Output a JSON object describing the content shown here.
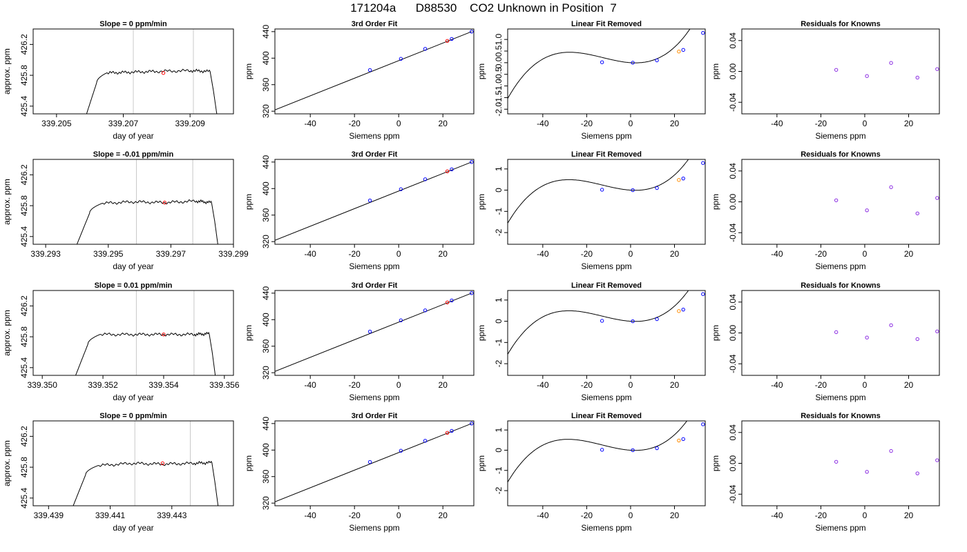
{
  "title": "171204a      D88530    CO2 Unknown in Position  7",
  "colors": {
    "trace": "#000000",
    "known": "#0000ff",
    "unknown": "#ff0000",
    "orange": "#ff8c00",
    "residual": "#8a2be2",
    "vline": "#c8c8c8"
  },
  "chart_data": [
    {
      "type": "line",
      "panel": "trace",
      "title": "Slope =  0  ppm/min",
      "xlabel": "day of year",
      "ylabel": "approx. ppm",
      "xlim": [
        339.2043,
        339.2103
      ],
      "ylim": [
        425.3,
        426.4
      ],
      "xticks": [
        339.205,
        339.207,
        339.209
      ],
      "xtick_labels": [
        "339.205",
        "339.207",
        "339.209"
      ],
      "yticks": [
        425.4,
        425.8,
        426.2
      ],
      "ytick_labels": [
        "425.4",
        "425.8",
        "426.2"
      ],
      "vlines": [
        339.2073,
        339.2091
      ],
      "marker": {
        "x": 339.2082,
        "y": 425.83
      },
      "x": [
        339.2059,
        339.2062,
        339.2065,
        339.2072,
        339.208,
        339.209,
        339.2096,
        339.2097,
        339.2098
      ],
      "y": [
        425.3,
        425.7,
        425.83,
        425.84,
        425.85,
        425.86,
        425.85,
        425.6,
        425.3
      ]
    },
    {
      "type": "line",
      "panel": "fit",
      "title": "3rd Order Fit",
      "xlabel": "Siemens ppm",
      "ylabel": "ppm",
      "xlim": [
        -56,
        34
      ],
      "ylim": [
        316,
        444
      ],
      "xticks": [
        -40,
        -20,
        0,
        20
      ],
      "xtick_labels": [
        "-40",
        "-20",
        "0",
        "20"
      ],
      "yticks": [
        320,
        360,
        400,
        440
      ],
      "ytick_labels": [
        "320",
        "360",
        "400",
        "440"
      ],
      "line": {
        "x": [
          -56,
          33
        ],
        "y": [
          322,
          440
        ]
      },
      "known": {
        "x": [
          -13,
          1,
          12,
          24,
          33
        ],
        "y": [
          382,
          399,
          414,
          429,
          440
        ]
      },
      "unknown": {
        "x": [
          22
        ],
        "y": [
          426
        ]
      }
    },
    {
      "type": "line",
      "panel": "linear",
      "title": "Linear Fit Removed",
      "xlabel": "Siemens ppm",
      "ylabel": "ppm",
      "xlim": [
        -56,
        34
      ],
      "ylim": [
        -2.2,
        1.45
      ],
      "xticks": [
        -40,
        -20,
        0,
        20
      ],
      "xtick_labels": [
        "-40",
        "-20",
        "0",
        "20"
      ],
      "yticks": [
        -2.0,
        -1.0,
        0.0,
        1.0
      ],
      "ytick_labels": [
        "-2.0",
        "-1.0",
        "0.0",
        "1.0"
      ],
      "extra_yticks": [
        -1.5,
        -0.5,
        0.5
      ],
      "extra_ytick_labels": [
        "-1.5",
        "-0.5",
        "0.5"
      ],
      "curve": {
        "a": 3.4e-05,
        "b": 0.0013,
        "c": -0.0063,
        "d": 0.0
      },
      "known": {
        "x": [
          -13,
          1,
          12,
          24,
          33
        ],
        "y": [
          0.02,
          0.0,
          0.1,
          0.55,
          1.28
        ]
      },
      "unknown": {
        "x": [
          22
        ],
        "y": [
          0.48
        ]
      }
    },
    {
      "type": "scatter",
      "panel": "residual",
      "title": "Residuals for Knowns",
      "xlabel": "Siemens ppm",
      "ylabel": "ppm",
      "xlim": [
        -56,
        34
      ],
      "ylim": [
        -0.055,
        0.055
      ],
      "xticks": [
        -40,
        -20,
        0,
        20
      ],
      "xtick_labels": [
        "-40",
        "-20",
        "0",
        "20"
      ],
      "yticks": [
        -0.04,
        0.0,
        0.04
      ],
      "ytick_labels": [
        "-0.04",
        "0.00",
        "0.04"
      ],
      "x": [
        -13,
        1,
        12,
        24,
        33
      ],
      "y": [
        0.002,
        -0.006,
        0.011,
        -0.008,
        0.003
      ]
    },
    {
      "type": "line",
      "panel": "trace",
      "title": "Slope =  -0.01  ppm/min",
      "xlabel": "day of year",
      "ylabel": "approx. ppm",
      "xlim": [
        339.2926,
        339.299
      ],
      "ylim": [
        425.3,
        426.4
      ],
      "xticks": [
        339.293,
        339.295,
        339.297,
        339.299
      ],
      "xtick_labels": [
        "339.293",
        "339.295",
        "339.297",
        "339.299"
      ],
      "yticks": [
        425.4,
        425.8,
        426.2
      ],
      "ytick_labels": [
        "425.4",
        "425.8",
        "426.2"
      ],
      "vlines": [
        339.2959,
        339.2977
      ],
      "marker": {
        "x": 339.2968,
        "y": 425.84
      },
      "x": [
        339.294,
        339.2944,
        339.2948,
        339.2958,
        339.2968,
        339.2978,
        339.2983,
        339.2984,
        339.2985
      ],
      "y": [
        425.3,
        425.7,
        425.83,
        425.85,
        425.84,
        425.86,
        425.84,
        425.6,
        425.3
      ]
    },
    {
      "type": "line",
      "panel": "fit",
      "title": "3rd Order Fit",
      "xlabel": "Siemens ppm",
      "ylabel": "ppm",
      "xlim": [
        -56,
        34
      ],
      "ylim": [
        316,
        444
      ],
      "xticks": [
        -40,
        -20,
        0,
        20
      ],
      "xtick_labels": [
        "-40",
        "-20",
        "0",
        "20"
      ],
      "yticks": [
        320,
        360,
        400,
        440
      ],
      "ytick_labels": [
        "320",
        "360",
        "400",
        "440"
      ],
      "line": {
        "x": [
          -56,
          33
        ],
        "y": [
          322,
          440
        ]
      },
      "known": {
        "x": [
          -13,
          1,
          12,
          24,
          33
        ],
        "y": [
          382,
          399,
          414,
          429,
          440
        ]
      },
      "unknown": {
        "x": [
          22
        ],
        "y": [
          426
        ]
      }
    },
    {
      "type": "line",
      "panel": "linear",
      "title": "Linear Fit Removed",
      "xlabel": "Siemens ppm",
      "ylabel": "ppm",
      "xlim": [
        -56,
        34
      ],
      "ylim": [
        -2.55,
        1.45
      ],
      "xticks": [
        -40,
        -20,
        0,
        20
      ],
      "xtick_labels": [
        "-40",
        "-20",
        "0",
        "20"
      ],
      "yticks": [
        -2,
        -1,
        0,
        1
      ],
      "ytick_labels": [
        "-2",
        "-1",
        "0",
        "1"
      ],
      "curve": {
        "a": 3.6e-05,
        "b": 0.0014,
        "c": -0.0067,
        "d": 0.0
      },
      "known": {
        "x": [
          -13,
          1,
          12,
          24,
          33
        ],
        "y": [
          0.02,
          0.0,
          0.1,
          0.55,
          1.28
        ]
      },
      "unknown": {
        "x": [
          22
        ],
        "y": [
          0.48
        ]
      }
    },
    {
      "type": "scatter",
      "panel": "residual",
      "title": "Residuals for Knowns",
      "xlabel": "Siemens ppm",
      "ylabel": "ppm",
      "xlim": [
        -56,
        34
      ],
      "ylim": [
        -0.055,
        0.055
      ],
      "xticks": [
        -40,
        -20,
        0,
        20
      ],
      "xtick_labels": [
        "-40",
        "-20",
        "0",
        "20"
      ],
      "yticks": [
        -0.04,
        0.0,
        0.04
      ],
      "ytick_labels": [
        "-0.04",
        "0.00",
        "0.04"
      ],
      "x": [
        -13,
        1,
        12,
        24,
        33
      ],
      "y": [
        0.002,
        -0.011,
        0.019,
        -0.015,
        0.005
      ]
    },
    {
      "type": "line",
      "panel": "trace",
      "title": "Slope =  0.01  ppm/min",
      "xlabel": "day of year",
      "ylabel": "approx. ppm",
      "xlim": [
        339.3497,
        339.3563
      ],
      "ylim": [
        425.3,
        426.4
      ],
      "xticks": [
        339.35,
        339.352,
        339.354,
        339.356
      ],
      "xtick_labels": [
        "339.350",
        "339.352",
        "339.354",
        "339.356"
      ],
      "yticks": [
        425.4,
        425.8,
        426.2
      ],
      "ytick_labels": [
        "425.4",
        "425.8",
        "426.2"
      ],
      "vlines": [
        339.3531,
        339.355
      ],
      "marker": {
        "x": 339.354,
        "y": 425.83
      },
      "x": [
        339.3511,
        339.3515,
        339.3519,
        339.353,
        339.354,
        339.355,
        339.3555,
        339.3556,
        339.3557
      ],
      "y": [
        425.3,
        425.7,
        425.83,
        425.83,
        425.83,
        425.83,
        425.84,
        425.6,
        425.3
      ]
    },
    {
      "type": "line",
      "panel": "fit",
      "title": "3rd Order Fit",
      "xlabel": "Siemens ppm",
      "ylabel": "ppm",
      "xlim": [
        -56,
        34
      ],
      "ylim": [
        316,
        444
      ],
      "xticks": [
        -40,
        -20,
        0,
        20
      ],
      "xtick_labels": [
        "-40",
        "-20",
        "0",
        "20"
      ],
      "yticks": [
        320,
        360,
        400,
        440
      ],
      "ytick_labels": [
        "320",
        "360",
        "400",
        "440"
      ],
      "line": {
        "x": [
          -56,
          33
        ],
        "y": [
          322,
          440
        ]
      },
      "known": {
        "x": [
          -13,
          1,
          12,
          24,
          33
        ],
        "y": [
          382,
          399,
          414,
          429,
          440
        ]
      },
      "unknown": {
        "x": [
          22
        ],
        "y": [
          426
        ]
      }
    },
    {
      "type": "line",
      "panel": "linear",
      "title": "Linear Fit Removed",
      "xlabel": "Siemens ppm",
      "ylabel": "ppm",
      "xlim": [
        -56,
        34
      ],
      "ylim": [
        -2.55,
        1.45
      ],
      "xticks": [
        -40,
        -20,
        0,
        20
      ],
      "xtick_labels": [
        "-40",
        "-20",
        "0",
        "20"
      ],
      "yticks": [
        -2,
        -1,
        0,
        1
      ],
      "ytick_labels": [
        "-2",
        "-1",
        "0",
        "1"
      ],
      "curve": {
        "a": 3.6e-05,
        "b": 0.0014,
        "c": -0.0067,
        "d": 0.0
      },
      "known": {
        "x": [
          -13,
          1,
          12,
          24,
          33
        ],
        "y": [
          0.02,
          0.0,
          0.1,
          0.55,
          1.28
        ]
      },
      "unknown": {
        "x": [
          22
        ],
        "y": [
          0.48
        ]
      }
    },
    {
      "type": "scatter",
      "panel": "residual",
      "title": "Residuals for Knowns",
      "xlabel": "Siemens ppm",
      "ylabel": "ppm",
      "xlim": [
        -56,
        34
      ],
      "ylim": [
        -0.055,
        0.055
      ],
      "xticks": [
        -40,
        -20,
        0,
        20
      ],
      "xtick_labels": [
        "-40",
        "-20",
        "0",
        "20"
      ],
      "yticks": [
        -0.04,
        0.0,
        0.04
      ],
      "ytick_labels": [
        "-0.04",
        "0.00",
        "0.04"
      ],
      "x": [
        -13,
        1,
        12,
        24,
        33
      ],
      "y": [
        0.001,
        -0.006,
        0.01,
        -0.008,
        0.002
      ]
    },
    {
      "type": "line",
      "panel": "trace",
      "title": "Slope =  0  ppm/min",
      "xlabel": "day of year",
      "ylabel": "approx. ppm",
      "xlim": [
        339.4385,
        339.445
      ],
      "ylim": [
        425.3,
        426.4
      ],
      "xticks": [
        339.439,
        339.441,
        339.443
      ],
      "xtick_labels": [
        "339.439",
        "339.441",
        "339.443"
      ],
      "yticks": [
        425.4,
        425.8,
        426.2
      ],
      "ytick_labels": [
        "425.4",
        "425.8",
        "426.2"
      ],
      "vlines": [
        339.4418,
        339.4436
      ],
      "marker": {
        "x": 339.4427,
        "y": 425.85
      },
      "x": [
        339.4398,
        339.4402,
        339.4406,
        339.4417,
        339.4427,
        339.4437,
        339.4443,
        339.4444,
        339.4445
      ],
      "y": [
        425.3,
        425.7,
        425.82,
        425.85,
        425.84,
        425.85,
        425.86,
        425.6,
        425.3
      ]
    },
    {
      "type": "line",
      "panel": "fit",
      "title": "3rd Order Fit",
      "xlabel": "Siemens ppm",
      "ylabel": "ppm",
      "xlim": [
        -56,
        34
      ],
      "ylim": [
        316,
        444
      ],
      "xticks": [
        -40,
        -20,
        0,
        20
      ],
      "xtick_labels": [
        "-40",
        "-20",
        "0",
        "20"
      ],
      "yticks": [
        320,
        360,
        400,
        440
      ],
      "ytick_labels": [
        "320",
        "360",
        "400",
        "440"
      ],
      "line": {
        "x": [
          -56,
          33
        ],
        "y": [
          322,
          440
        ]
      },
      "known": {
        "x": [
          -13,
          1,
          12,
          24,
          33
        ],
        "y": [
          382,
          399,
          414,
          429,
          440
        ]
      },
      "unknown": {
        "x": [
          22
        ],
        "y": [
          426
        ]
      }
    },
    {
      "type": "line",
      "panel": "linear",
      "title": "Linear Fit Removed",
      "xlabel": "Siemens ppm",
      "ylabel": "ppm",
      "xlim": [
        -56,
        34
      ],
      "ylim": [
        -2.75,
        1.45
      ],
      "xticks": [
        -40,
        -20,
        0,
        20
      ],
      "xtick_labels": [
        "-40",
        "-20",
        "0",
        "20"
      ],
      "yticks": [
        -2,
        -1,
        0,
        1
      ],
      "ytick_labels": [
        "-2",
        "-1",
        "0",
        "1"
      ],
      "curve": {
        "a": 3.8e-05,
        "b": 0.0015,
        "c": -0.007,
        "d": 0.0
      },
      "known": {
        "x": [
          -13,
          1,
          12,
          24,
          33
        ],
        "y": [
          0.02,
          0.0,
          0.1,
          0.55,
          1.28
        ]
      },
      "unknown": {
        "x": [
          22
        ],
        "y": [
          0.48
        ]
      }
    },
    {
      "type": "scatter",
      "panel": "residual",
      "title": "Residuals for Knowns",
      "xlabel": "Siemens ppm",
      "ylabel": "ppm",
      "xlim": [
        -56,
        34
      ],
      "ylim": [
        -0.055,
        0.055
      ],
      "xticks": [
        -40,
        -20,
        0,
        20
      ],
      "xtick_labels": [
        "-40",
        "-20",
        "0",
        "20"
      ],
      "yticks": [
        -0.04,
        0.0,
        0.04
      ],
      "ytick_labels": [
        "-0.04",
        "0.00",
        "0.04"
      ],
      "x": [
        -13,
        1,
        12,
        24,
        33
      ],
      "y": [
        0.002,
        -0.011,
        0.016,
        -0.013,
        0.004
      ]
    }
  ]
}
